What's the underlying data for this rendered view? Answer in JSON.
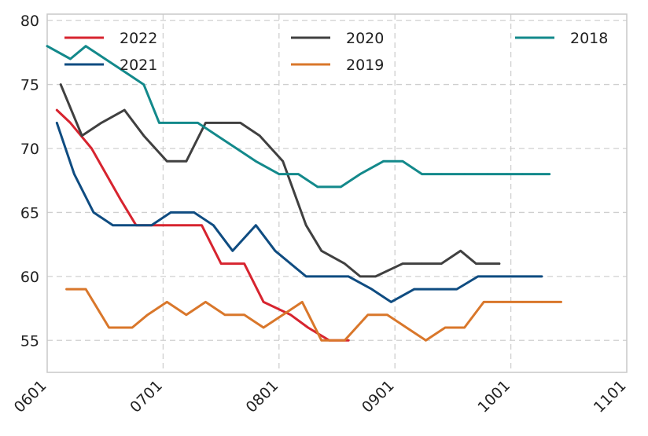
{
  "chart_data": {
    "type": "line",
    "title": "",
    "xlabel": "",
    "ylabel": "",
    "x_ticks": [
      "0601",
      "0701",
      "0801",
      "0901",
      "1001",
      "1101"
    ],
    "y_ticks": [
      55,
      60,
      65,
      70,
      75,
      80
    ],
    "xlim": [
      0,
      30
    ],
    "ylim": [
      52.5,
      80.5
    ],
    "grid": true,
    "legend_position": "top",
    "series": [
      {
        "name": "2022",
        "color": "#d7242f",
        "x": [
          0.5,
          1.2,
          2.3,
          3.8,
          4.6,
          5.5,
          6.2,
          7.0,
          8.0,
          9.0,
          10.2,
          11.2,
          12.6,
          13.5,
          14.6,
          15.6
        ],
        "y": [
          73,
          72,
          70,
          66,
          64,
          64,
          64,
          64,
          64,
          61,
          61,
          58,
          57,
          56,
          55,
          55
        ]
      },
      {
        "name": "2021",
        "color": "#0f4c81",
        "x": [
          0.5,
          1.4,
          2.4,
          3.4,
          4.6,
          5.4,
          6.4,
          7.6,
          8.6,
          9.6,
          10.8,
          11.8,
          13.4,
          14.8,
          15.6,
          16.8,
          17.8,
          19.0,
          20.2,
          21.2,
          22.3,
          23.3,
          24.8,
          25.6
        ],
        "y": [
          72,
          68,
          65,
          64,
          64,
          64,
          65,
          65,
          64,
          62,
          64,
          62,
          60,
          60,
          60,
          59,
          58,
          59,
          59,
          59,
          60,
          60,
          60,
          60
        ]
      },
      {
        "name": "2020",
        "color": "#404040",
        "x": [
          0.7,
          1.8,
          2.8,
          4.0,
          5.0,
          6.2,
          7.2,
          8.2,
          9.0,
          10.0,
          11.0,
          12.2,
          13.4,
          14.2,
          15.4,
          16.2,
          17.0,
          18.4,
          19.4,
          20.4,
          21.4,
          22.2,
          23.4
        ],
        "y": [
          75,
          71,
          72,
          73,
          71,
          69,
          69,
          72,
          72,
          72,
          71,
          69,
          64,
          62,
          61,
          60,
          60,
          61,
          61,
          61,
          62,
          61,
          61
        ]
      },
      {
        "name": "2019",
        "color": "#d9772b",
        "x": [
          1.0,
          2.0,
          3.2,
          4.4,
          5.2,
          6.2,
          7.2,
          8.2,
          9.2,
          10.2,
          11.2,
          12.2,
          13.2,
          14.2,
          15.4,
          16.6,
          17.6,
          18.6,
          19.6,
          20.6,
          21.6,
          22.6,
          23.6,
          24.6,
          25.6,
          26.6
        ],
        "y": [
          59,
          59,
          56,
          56,
          57,
          58,
          57,
          58,
          57,
          57,
          56,
          57,
          58,
          55,
          55,
          57,
          57,
          56,
          55,
          56,
          56,
          58,
          58,
          58,
          58,
          58
        ]
      },
      {
        "name": "2018",
        "color": "#13898b",
        "x": [
          0.0,
          1.2,
          2.0,
          3.0,
          4.0,
          5.0,
          5.8,
          6.8,
          7.8,
          8.8,
          9.8,
          10.8,
          12.0,
          13.0,
          14.0,
          15.2,
          16.2,
          17.4,
          18.4,
          19.4,
          20.4,
          21.6,
          22.8,
          23.8,
          24.6,
          25.2,
          26.0
        ],
        "y": [
          78,
          77,
          78,
          77,
          76,
          75,
          72,
          72,
          72,
          71,
          70,
          69,
          68,
          68,
          67,
          67,
          68,
          69,
          69,
          68,
          68,
          68,
          68,
          68,
          68,
          68,
          68
        ]
      }
    ]
  }
}
